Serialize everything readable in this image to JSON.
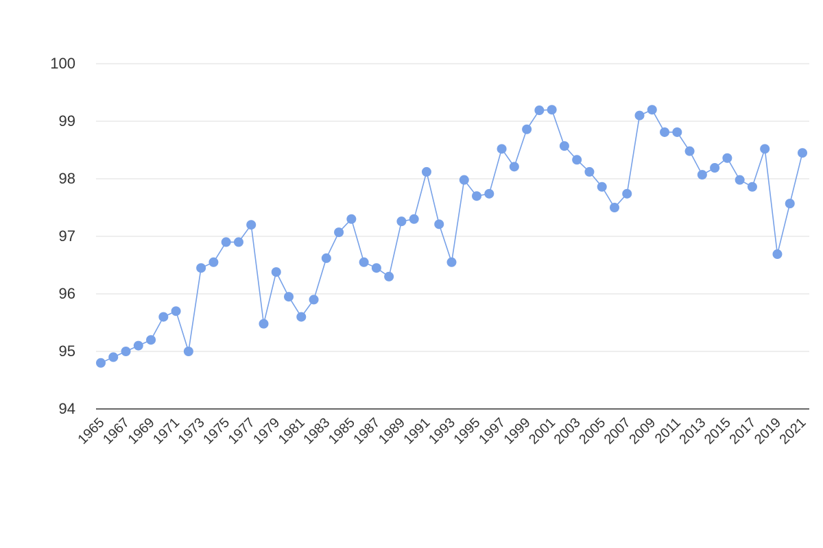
{
  "chart_data": {
    "type": "line",
    "categories": [
      "1965",
      null,
      "1967",
      null,
      "1969",
      null,
      "1971",
      null,
      "1973",
      null,
      "1975",
      null,
      "1977",
      null,
      "1979",
      null,
      "1981",
      null,
      "1983",
      null,
      "1985",
      null,
      "1987",
      null,
      "1989",
      null,
      "1991",
      null,
      "1993",
      null,
      "1995",
      null,
      "1997",
      null,
      "1999",
      null,
      "2001",
      null,
      "2003",
      null,
      "2005",
      null,
      "2007",
      null,
      "2009",
      null,
      "2011",
      null,
      "2013",
      null,
      "2015",
      null,
      "2017",
      null,
      "2019",
      null,
      "2021"
    ],
    "series": [
      {
        "color": "#77a1e8",
        "values": [
          94.8,
          94.9,
          95.0,
          95.1,
          95.2,
          95.6,
          95.7,
          95.0,
          96.45,
          96.55,
          96.9,
          96.9,
          97.2,
          95.48,
          96.38,
          95.95,
          95.6,
          95.9,
          96.62,
          97.07,
          97.3,
          96.55,
          96.45,
          96.3,
          97.26,
          97.3,
          98.12,
          97.21,
          96.55,
          97.98,
          97.7,
          97.74,
          98.52,
          98.21,
          98.86,
          99.19,
          99.2,
          98.57,
          98.33,
          98.12,
          97.86,
          97.5,
          97.74,
          99.1,
          99.2,
          98.81,
          98.81,
          98.48,
          98.07,
          98.19,
          98.36,
          97.98,
          97.86,
          98.52,
          96.69,
          97.57,
          98.45
        ]
      }
    ],
    "ylim": [
      94,
      100
    ],
    "yticks": [
      94,
      95,
      96,
      97,
      98,
      99,
      100
    ],
    "grid": true
  }
}
